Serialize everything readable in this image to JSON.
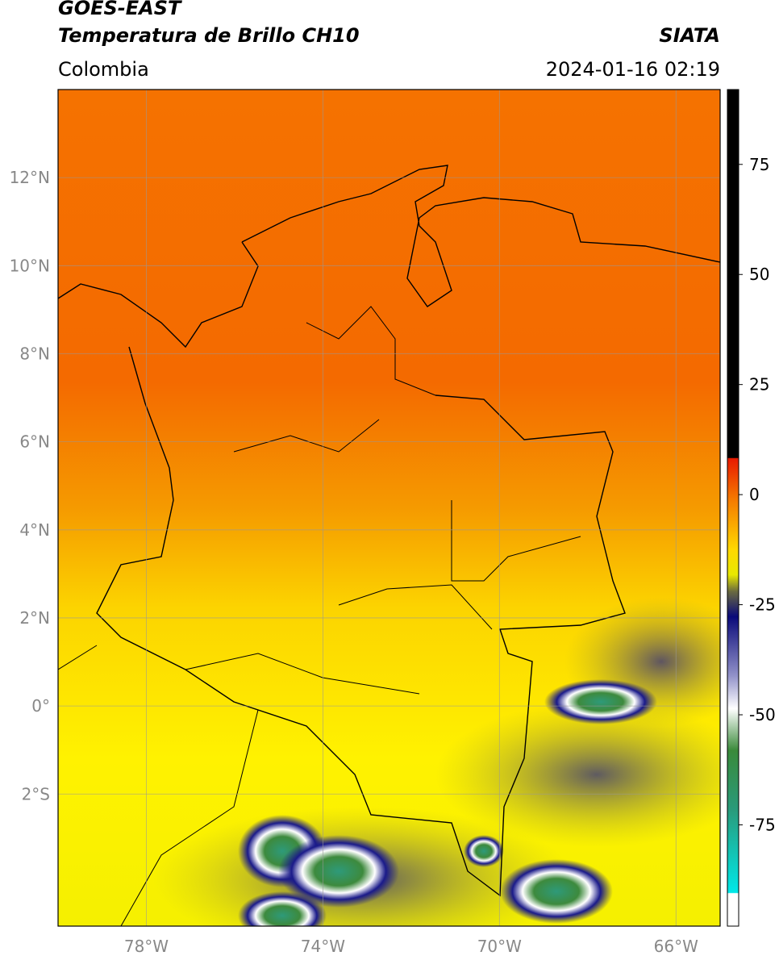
{
  "header": {
    "title": "GOES-EAST",
    "subtitle": "Temperatura de Brillo CH10",
    "source": "SIATA",
    "region": "Colombia",
    "datetime": "2024-01-16 02:19"
  },
  "map": {
    "xlim": [
      -80,
      -65
    ],
    "ylim": [
      -5,
      14
    ],
    "grid": true,
    "xticks": [
      {
        "value": -78,
        "label": "78°W"
      },
      {
        "value": -74,
        "label": "74°W"
      },
      {
        "value": -70,
        "label": "70°W"
      },
      {
        "value": -66,
        "label": "66°W"
      }
    ],
    "yticks": [
      {
        "value": 12,
        "label": "12°N"
      },
      {
        "value": 10,
        "label": "10°N"
      },
      {
        "value": 8,
        "label": "8°N"
      },
      {
        "value": 6,
        "label": "6°N"
      },
      {
        "value": 4,
        "label": "4°N"
      },
      {
        "value": 2,
        "label": "2°N"
      },
      {
        "value": 0,
        "label": "0°"
      },
      {
        "value": -2,
        "label": "2°S"
      }
    ]
  },
  "colorbar": {
    "lim": [
      -98,
      92
    ],
    "ticks": [
      75,
      50,
      25,
      0,
      -25,
      -50,
      -75
    ]
  }
}
